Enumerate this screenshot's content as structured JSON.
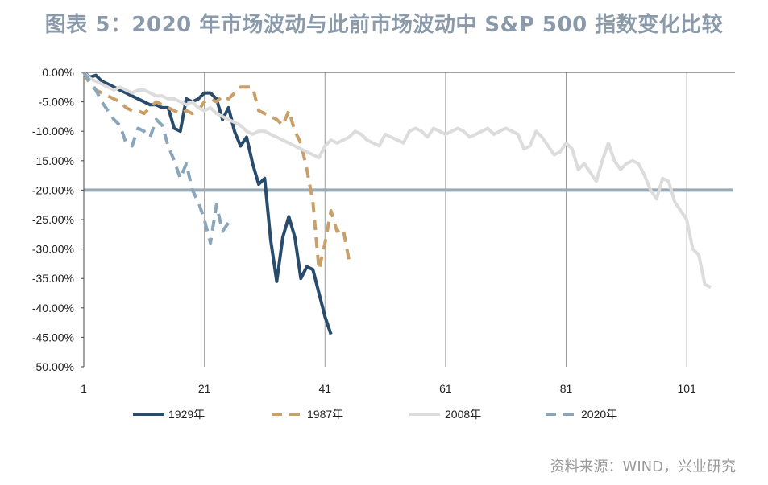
{
  "title": "图表 5：2020 年市场波动与此前市场波动中 S&P 500 指数变化比较",
  "source": "资料来源：WIND，兴业研究",
  "chart_data": {
    "type": "line",
    "title": "图表 5：2020 年市场波动与此前市场波动中 S&P 500 指数变化比较",
    "xlabel": "",
    "ylabel": "",
    "xlim": [
      1,
      109
    ],
    "ylim": [
      -0.5,
      0
    ],
    "x_ticks": [
      1,
      21,
      41,
      61,
      81,
      101
    ],
    "y_ticks": [
      0,
      -0.05,
      -0.1,
      -0.15,
      -0.2,
      -0.25,
      -0.3,
      -0.35,
      -0.4,
      -0.45,
      -0.5
    ],
    "y_tick_labels": [
      "0.00%",
      "-5.00%",
      "-10.00%",
      "-15.00%",
      "-20.00%",
      "-25.00%",
      "-30.00%",
      "-35.00%",
      "-40.00%",
      "-45.00%",
      "-50.00%"
    ],
    "reference_line": {
      "y": -0.2,
      "color": "#9aabb8"
    },
    "grid": "vertical lines at x ticks",
    "legend_position": "bottom",
    "series": [
      {
        "name": "1929年",
        "color": "#2a4c6c",
        "dash": "solid",
        "values": [
          0,
          -0.008,
          -0.005,
          -0.015,
          -0.02,
          -0.025,
          -0.03,
          -0.035,
          -0.04,
          -0.045,
          -0.05,
          -0.055,
          -0.055,
          -0.06,
          -0.06,
          -0.095,
          -0.1,
          -0.045,
          -0.05,
          -0.045,
          -0.035,
          -0.035,
          -0.045,
          -0.08,
          -0.06,
          -0.1,
          -0.125,
          -0.11,
          -0.155,
          -0.19,
          -0.18,
          -0.285,
          -0.355,
          -0.28,
          -0.245,
          -0.28,
          -0.35,
          -0.33,
          -0.335,
          -0.375,
          -0.415,
          -0.445
        ]
      },
      {
        "name": "1987年",
        "color": "#c9a06a",
        "dash": "dashed",
        "values": [
          0,
          -0.02,
          -0.03,
          -0.035,
          -0.04,
          -0.045,
          -0.05,
          -0.06,
          -0.065,
          -0.065,
          -0.07,
          -0.06,
          -0.05,
          -0.055,
          -0.06,
          -0.065,
          -0.07,
          -0.065,
          -0.07,
          -0.065,
          -0.05,
          -0.045,
          -0.05,
          -0.04,
          -0.045,
          -0.035,
          -0.025,
          -0.025,
          -0.025,
          -0.065,
          -0.07,
          -0.075,
          -0.08,
          -0.09,
          -0.065,
          -0.1,
          -0.12,
          -0.165,
          -0.22,
          -0.335,
          -0.29,
          -0.235,
          -0.27,
          -0.265,
          -0.32
        ]
      },
      {
        "name": "2008年",
        "color": "#dcdcdc",
        "dash": "solid",
        "values": [
          0,
          -0.01,
          -0.015,
          -0.02,
          -0.025,
          -0.03,
          -0.025,
          -0.03,
          -0.035,
          -0.03,
          -0.03,
          -0.035,
          -0.04,
          -0.04,
          -0.045,
          -0.045,
          -0.05,
          -0.055,
          -0.05,
          -0.06,
          -0.065,
          -0.06,
          -0.07,
          -0.075,
          -0.08,
          -0.085,
          -0.09,
          -0.1,
          -0.105,
          -0.1,
          -0.1,
          -0.105,
          -0.11,
          -0.115,
          -0.12,
          -0.125,
          -0.13,
          -0.135,
          -0.14,
          -0.145,
          -0.125,
          -0.115,
          -0.12,
          -0.115,
          -0.11,
          -0.1,
          -0.105,
          -0.115,
          -0.12,
          -0.125,
          -0.105,
          -0.11,
          -0.115,
          -0.12,
          -0.1,
          -0.095,
          -0.1,
          -0.11,
          -0.095,
          -0.1,
          -0.105,
          -0.1,
          -0.095,
          -0.1,
          -0.11,
          -0.105,
          -0.1,
          -0.095,
          -0.105,
          -0.1,
          -0.095,
          -0.1,
          -0.105,
          -0.13,
          -0.125,
          -0.1,
          -0.11,
          -0.125,
          -0.14,
          -0.135,
          -0.12,
          -0.13,
          -0.165,
          -0.155,
          -0.17,
          -0.185,
          -0.15,
          -0.12,
          -0.15,
          -0.165,
          -0.155,
          -0.15,
          -0.155,
          -0.175,
          -0.2,
          -0.215,
          -0.18,
          -0.185,
          -0.22,
          -0.235,
          -0.25,
          -0.3,
          -0.31,
          -0.36,
          -0.365
        ]
      },
      {
        "name": "2020年",
        "color": "#8aa6bc",
        "dash": "dashed",
        "values": [
          0,
          -0.015,
          -0.03,
          -0.05,
          -0.065,
          -0.08,
          -0.09,
          -0.12,
          -0.125,
          -0.095,
          -0.1,
          -0.11,
          -0.08,
          -0.09,
          -0.125,
          -0.15,
          -0.18,
          -0.155,
          -0.2,
          -0.22,
          -0.25,
          -0.29,
          -0.225,
          -0.27,
          -0.255
        ]
      }
    ]
  }
}
